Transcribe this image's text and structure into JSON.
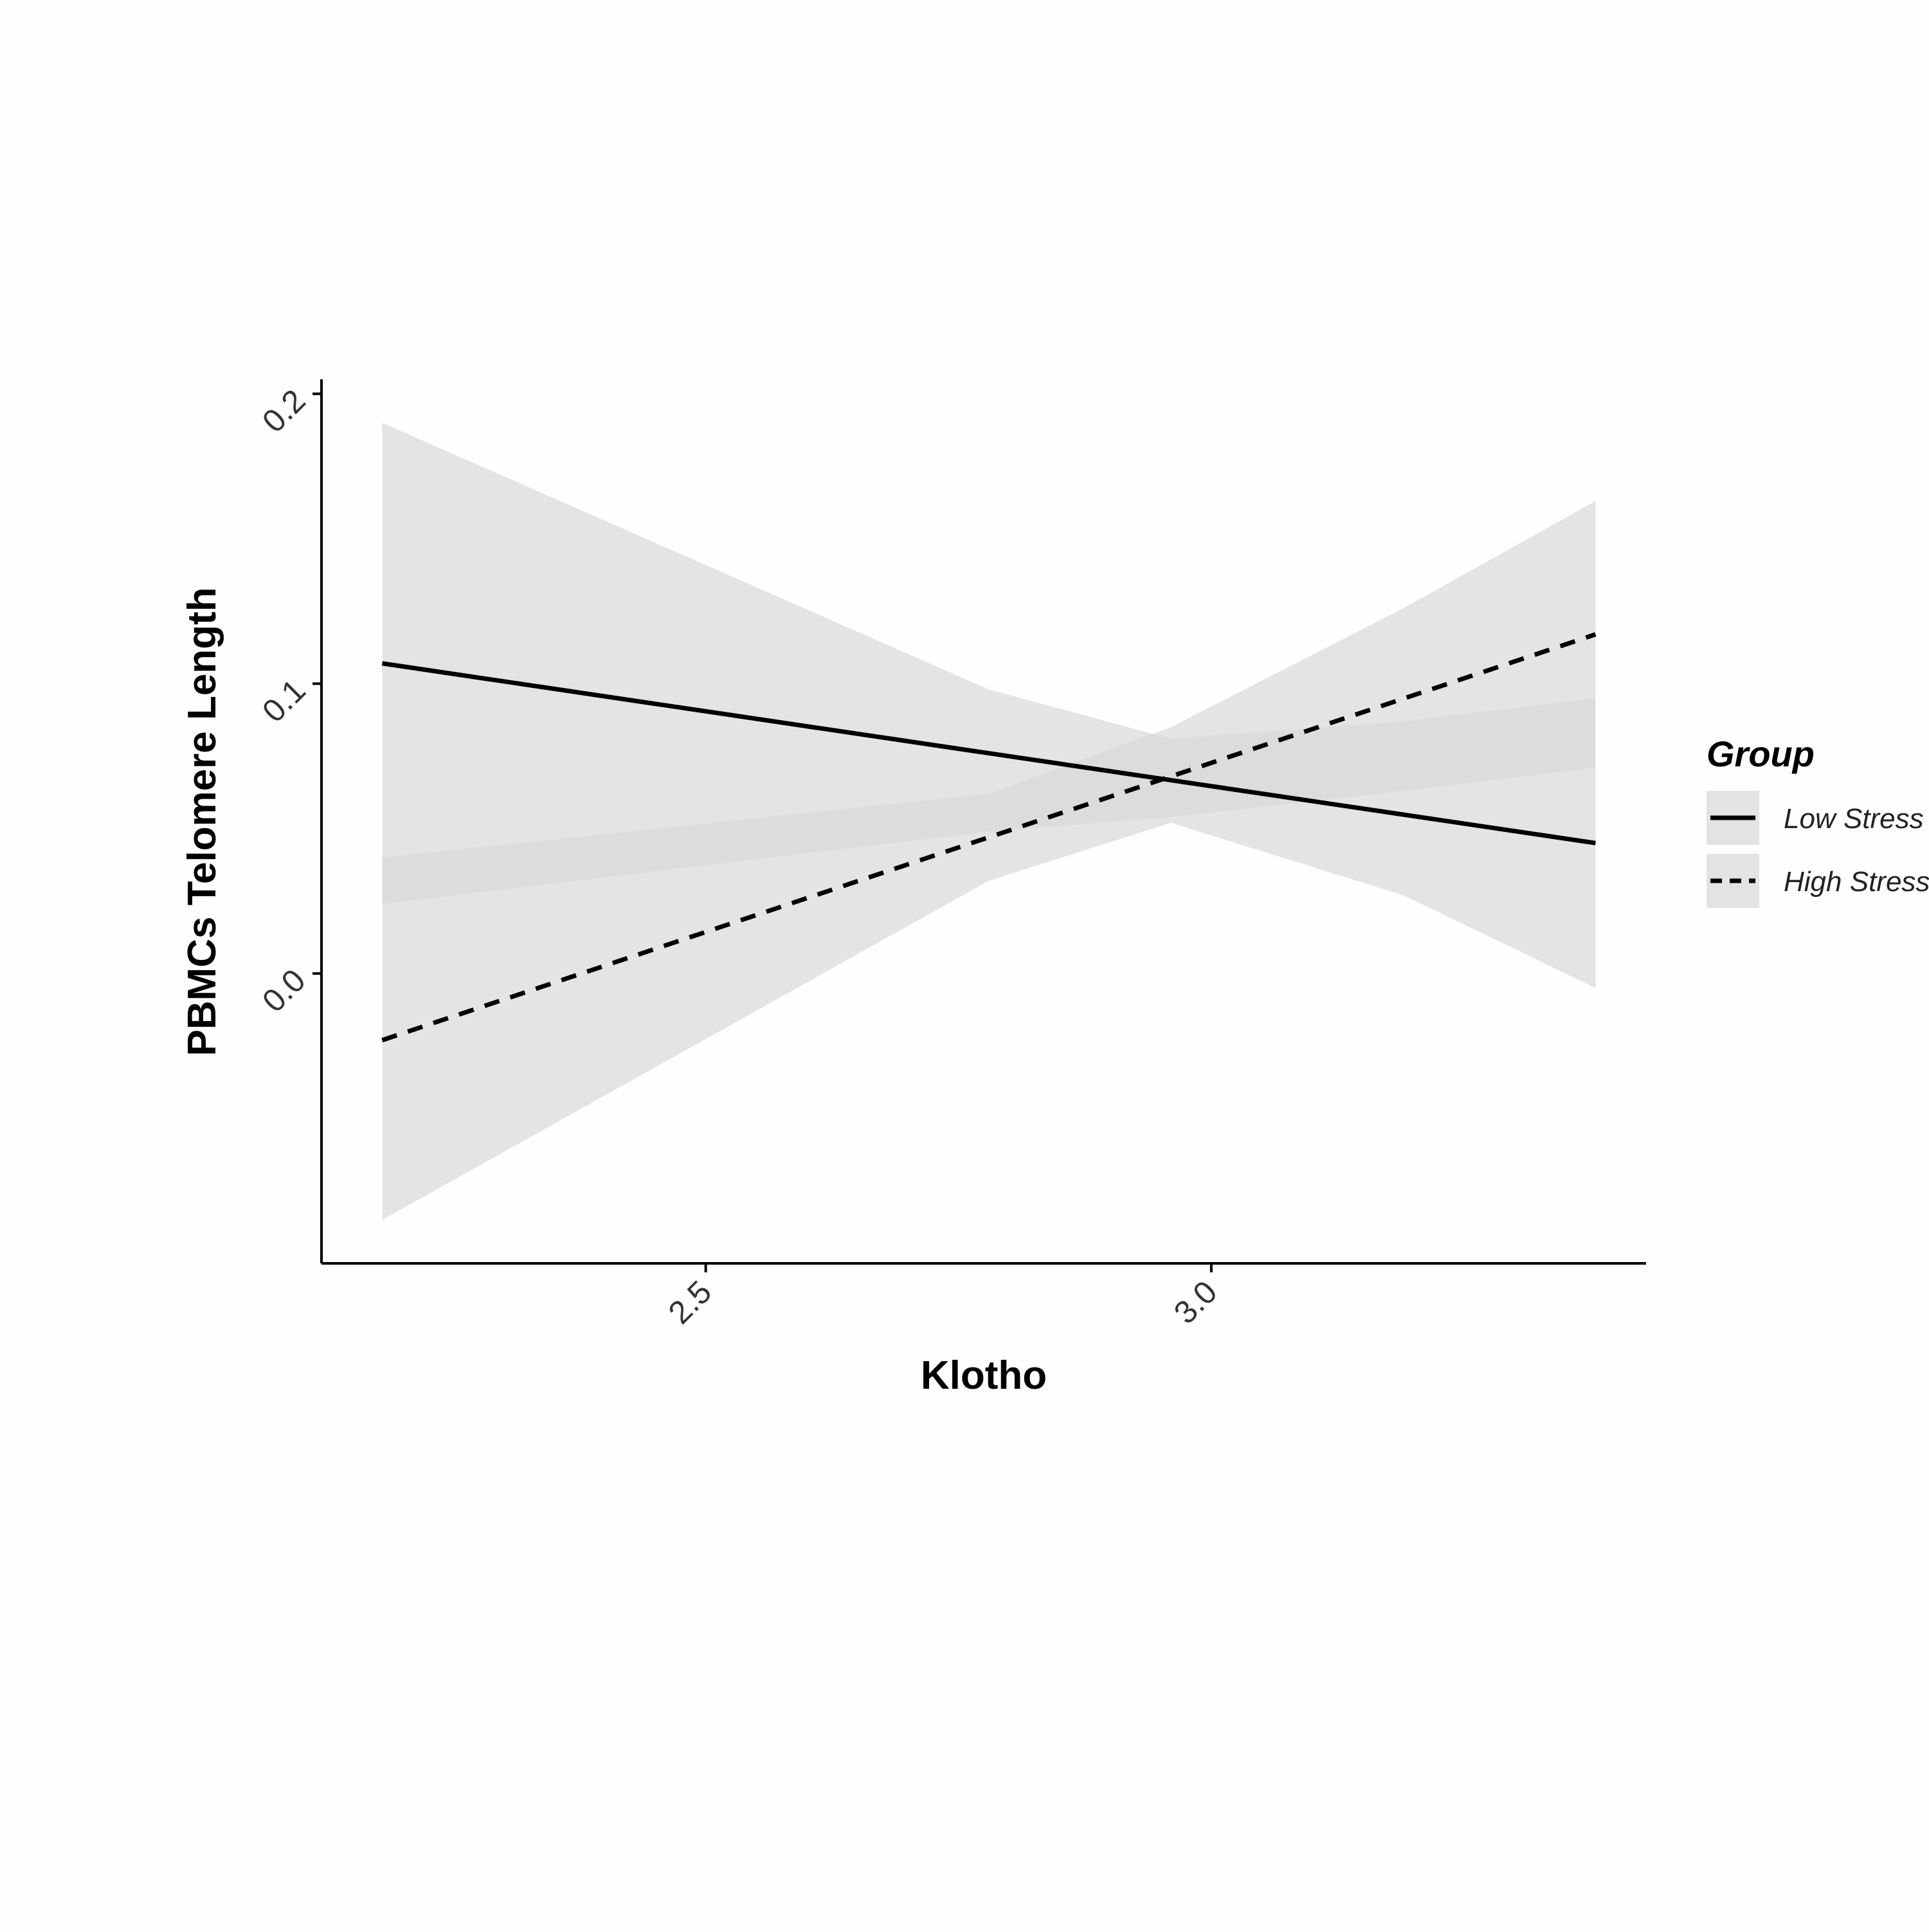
{
  "chart_data": {
    "type": "line",
    "title": "",
    "xlabel": "Klotho",
    "ylabel": "PBMCs Telomere Length",
    "xlim": [
      2.12,
      3.43
    ],
    "ylim": [
      -0.1,
      0.205
    ],
    "x_ticks": [
      {
        "value": 2.5,
        "label": "2.5"
      },
      {
        "value": 3.0,
        "label": "3.0"
      }
    ],
    "y_ticks": [
      {
        "value": 0.0,
        "label": "0.0"
      },
      {
        "value": 0.1,
        "label": "0.1"
      },
      {
        "value": 0.2,
        "label": "0.2"
      }
    ],
    "grid": false,
    "legend": {
      "title": "Group",
      "placement": "right"
    },
    "series": [
      {
        "name": "Low Stress",
        "line_style": "solid",
        "x": [
          2.18,
          3.38
        ],
        "y": [
          0.107,
          0.045
        ],
        "ci_x": [
          2.18,
          2.78,
          2.96,
          3.19,
          3.38
        ],
        "ci_lower": [
          0.024,
          0.049,
          0.054,
          0.063,
          0.071
        ],
        "ci_upper": [
          0.19,
          0.098,
          0.081,
          0.087,
          0.095
        ]
      },
      {
        "name": "High Stress",
        "line_style": "dashed",
        "x": [
          2.18,
          3.38
        ],
        "y": [
          -0.023,
          0.117
        ],
        "ci_x": [
          2.18,
          2.78,
          2.96,
          3.19,
          3.38
        ],
        "ci_lower": [
          -0.085,
          0.032,
          0.052,
          0.027,
          -0.005
        ],
        "ci_upper": [
          0.04,
          0.062,
          0.085,
          0.126,
          0.163
        ]
      }
    ],
    "colors": {
      "line": "#000000",
      "ribbon": "#d9d9d9",
      "legend_key_bg": "#e3e3e3",
      "axis": "#000000",
      "tick_text": "#333333"
    }
  }
}
